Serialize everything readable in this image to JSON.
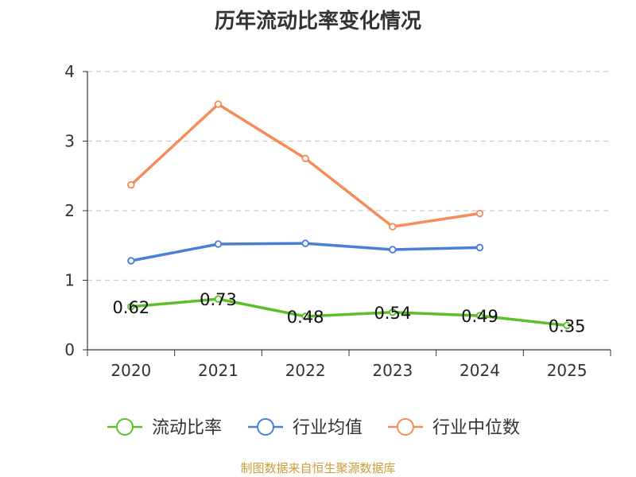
{
  "title": "历年流动比率变化情况",
  "source": "制图数据来自恒生聚源数据库",
  "colors": {
    "current_ratio": "#5cbf2a",
    "industry_avg": "#4a7fd6",
    "industry_median": "#f58c5a",
    "axis": "#333333",
    "grid": "#cccccc"
  },
  "chart_data": {
    "type": "line",
    "title": "历年流动比率变化情况",
    "categories": [
      "2020",
      "2021",
      "2022",
      "2023",
      "2024",
      "2025"
    ],
    "ylim": [
      0,
      4
    ],
    "yticks": [
      0,
      1,
      2,
      3,
      4
    ],
    "grid": true,
    "legend_position": "bottom",
    "series": [
      {
        "name": "流动比率",
        "values": [
          0.62,
          0.73,
          0.48,
          0.54,
          0.49,
          0.35
        ],
        "labels": [
          "0.62",
          "0.73",
          "0.48",
          "0.54",
          "0.49",
          "0.35"
        ],
        "color_key": "current_ratio"
      },
      {
        "name": "行业均值",
        "values": [
          1.28,
          1.52,
          1.53,
          1.44,
          1.47,
          null
        ],
        "color_key": "industry_avg"
      },
      {
        "name": "行业中位数",
        "values": [
          2.37,
          3.53,
          2.75,
          1.77,
          1.96,
          null
        ],
        "color_key": "industry_median"
      }
    ]
  }
}
